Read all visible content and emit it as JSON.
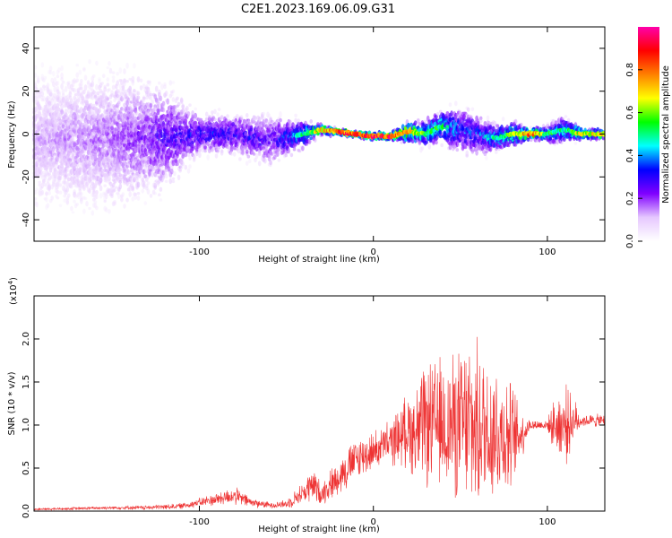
{
  "chart_data": [
    {
      "type": "heatmap",
      "title": "C2E1.2023.169.06.09.G31",
      "xlabel": "Height of straight line (km)",
      "ylabel": "Frequency (Hz)",
      "xlim": [
        -195,
        133
      ],
      "ylim": [
        -50,
        50
      ],
      "x_ticks": [
        -100,
        0,
        100
      ],
      "y_ticks": [
        -40,
        -20,
        0,
        20,
        40
      ],
      "colorbar": {
        "label": "Normalized spectral amplitude",
        "range": [
          0.0,
          1.0
        ],
        "ticks": [
          "0.0",
          "0.2",
          "0.4",
          "0.6",
          "0.8"
        ],
        "colors": [
          "#ffffff",
          "#e6c8ff",
          "#8000ff",
          "#0000ff",
          "#00ffff",
          "#00ff00",
          "#ffff00",
          "#ff8000",
          "#ff0000",
          "#ff00aa"
        ]
      },
      "ridge": {
        "x": [
          -195,
          -150,
          -120,
          -100,
          -80,
          -60,
          -40,
          -30,
          -20,
          -10,
          0,
          10,
          20,
          30,
          40,
          50,
          60,
          70,
          80,
          90,
          100,
          110,
          120,
          133
        ],
        "frequency": [
          -3,
          -2,
          -2,
          0,
          0,
          -3,
          0,
          2,
          1,
          0,
          -1,
          -1,
          1,
          0,
          4,
          2,
          0,
          -2,
          0,
          0,
          0,
          2,
          0,
          0
        ],
        "peak_amplitude": [
          0.15,
          0.2,
          0.3,
          0.35,
          0.35,
          0.3,
          0.5,
          0.75,
          0.85,
          0.9,
          0.9,
          0.9,
          0.75,
          0.55,
          0.55,
          0.4,
          0.4,
          0.5,
          0.6,
          0.85,
          0.55,
          0.5,
          0.7,
          0.7
        ],
        "spread_hz": [
          40,
          40,
          30,
          12,
          12,
          15,
          8,
          3,
          2,
          2,
          2,
          2,
          6,
          8,
          10,
          14,
          12,
          8,
          8,
          3,
          5,
          8,
          3,
          3
        ]
      }
    },
    {
      "type": "line",
      "xlabel": "Height of straight line (km)",
      "ylabel": "SNR (10 * v/v)",
      "y_multiplier": "(x10",
      "y_multiplier_exp": "4",
      "y_multiplier_close": ")",
      "xlim": [
        -195,
        133
      ],
      "ylim": [
        0,
        25000
      ],
      "x_ticks": [
        -100,
        0,
        100
      ],
      "y_ticks": [
        "0.0",
        "0.5",
        "1.0",
        "1.5",
        "2.0"
      ],
      "color": "#ee3333",
      "x": [
        -195,
        -170,
        -150,
        -130,
        -110,
        -100,
        -90,
        -80,
        -70,
        -60,
        -50,
        -40,
        -35,
        -30,
        -20,
        -10,
        0,
        10,
        20,
        25,
        30,
        40,
        50,
        55,
        60,
        70,
        80,
        85,
        90,
        95,
        100,
        105,
        110,
        115,
        120,
        133
      ],
      "mean": [
        200,
        300,
        400,
        400,
        600,
        1000,
        1400,
        1800,
        1000,
        700,
        800,
        2200,
        3000,
        2000,
        4000,
        6000,
        7000,
        8000,
        9500,
        9000,
        10000,
        10000,
        10000,
        10000,
        9500,
        9500,
        8500,
        9000,
        10000,
        10000,
        10000,
        10000,
        10000,
        10500,
        10500,
        10500
      ],
      "amplitude": [
        150,
        200,
        200,
        300,
        400,
        600,
        900,
        1200,
        700,
        400,
        600,
        1500,
        2500,
        1500,
        2500,
        3000,
        2500,
        3000,
        5000,
        7000,
        8000,
        9000,
        10000,
        12000,
        11000,
        10000,
        7000,
        3500,
        700,
        700,
        700,
        4000,
        5500,
        3000,
        800,
        900
      ]
    }
  ]
}
